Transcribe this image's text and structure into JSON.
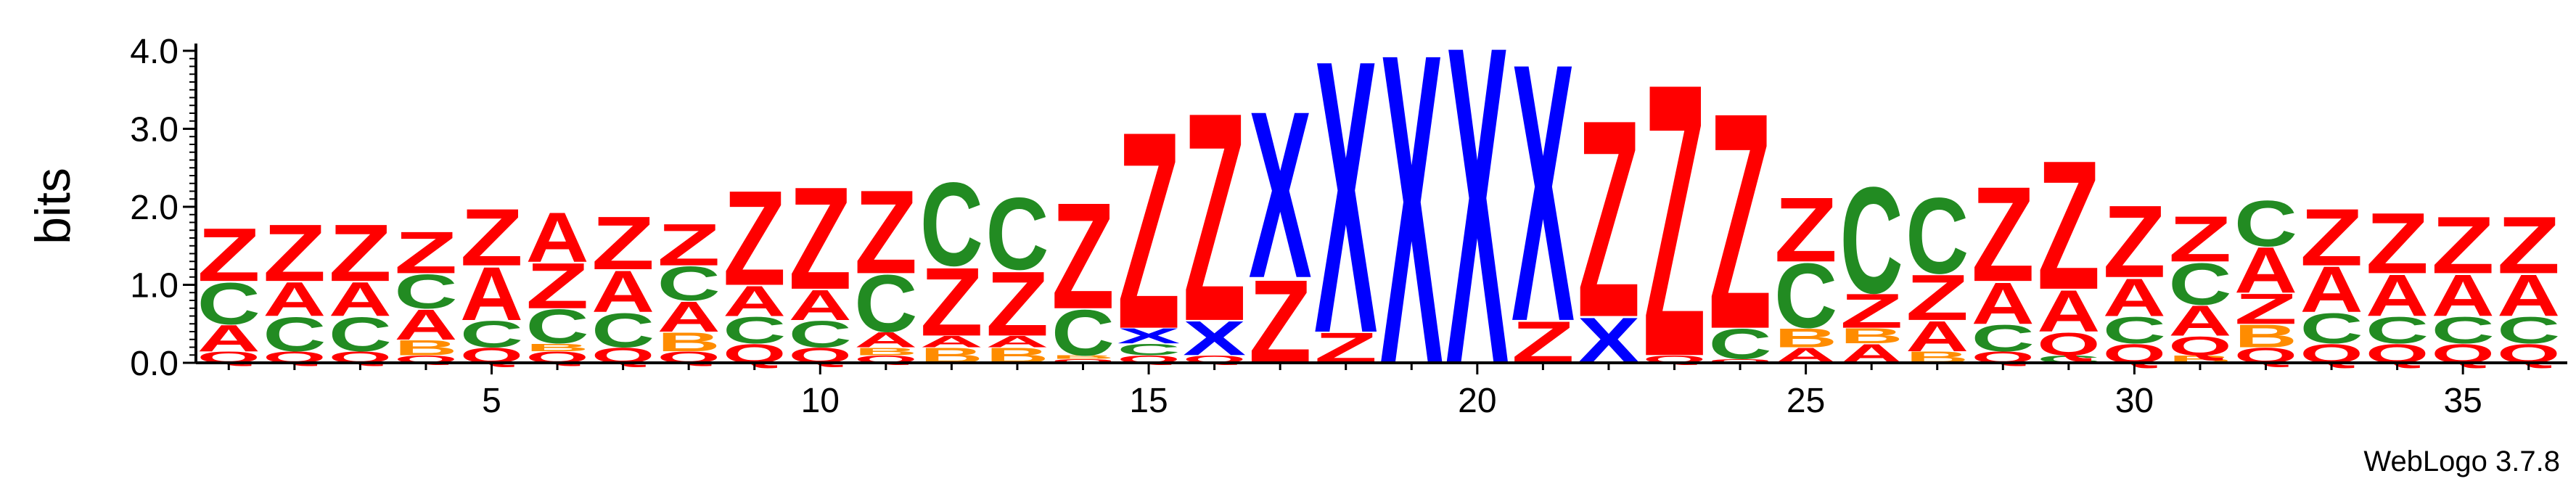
{
  "credit": "WebLogo 3.7.8",
  "chart_data": {
    "type": "sequence_logo",
    "ylabel": "bits",
    "ylim": [
      0,
      4.0
    ],
    "y_ticks": [
      "0.0",
      "1.0",
      "2.0",
      "3.0",
      "4.0"
    ],
    "x_ticks": [
      5,
      10,
      15,
      20,
      25,
      30,
      35
    ],
    "x_range": [
      1,
      36
    ],
    "colors": {
      "Z": "#ff0000",
      "X": "#0000ff",
      "C": "#228b22",
      "A": "#ff0000",
      "B": "#ff8c00",
      "Q": "#ff0000"
    },
    "positions": [
      {
        "pos": 1,
        "letters": [
          [
            "Q",
            0.15
          ],
          [
            "A",
            0.35
          ],
          [
            "C",
            0.55
          ],
          [
            "Z",
            0.7
          ]
        ]
      },
      {
        "pos": 2,
        "letters": [
          [
            "Q",
            0.15
          ],
          [
            "C",
            0.45
          ],
          [
            "A",
            0.45
          ],
          [
            "Z",
            0.75
          ]
        ]
      },
      {
        "pos": 3,
        "letters": [
          [
            "Q",
            0.15
          ],
          [
            "C",
            0.45
          ],
          [
            "A",
            0.45
          ],
          [
            "Z",
            0.75
          ]
        ]
      },
      {
        "pos": 4,
        "letters": [
          [
            "Q",
            0.1
          ],
          [
            "B",
            0.2
          ],
          [
            "A",
            0.4
          ],
          [
            "C",
            0.45
          ],
          [
            "Z",
            0.55
          ]
        ]
      },
      {
        "pos": 5,
        "letters": [
          [
            "Q",
            0.2
          ],
          [
            "C",
            0.35
          ],
          [
            "A",
            0.7
          ],
          [
            "Z",
            0.75
          ]
        ]
      },
      {
        "pos": 6,
        "letters": [
          [
            "Q",
            0.15
          ],
          [
            "B",
            0.1
          ],
          [
            "C",
            0.45
          ],
          [
            "Z",
            0.6
          ],
          [
            "A",
            0.65
          ]
        ]
      },
      {
        "pos": 7,
        "letters": [
          [
            "Q",
            0.2
          ],
          [
            "C",
            0.45
          ],
          [
            "A",
            0.55
          ],
          [
            "Z",
            0.7
          ]
        ]
      },
      {
        "pos": 8,
        "letters": [
          [
            "Q",
            0.15
          ],
          [
            "B",
            0.25
          ],
          [
            "A",
            0.4
          ],
          [
            "C",
            0.45
          ],
          [
            "Z",
            0.55
          ]
        ]
      },
      {
        "pos": 9,
        "letters": [
          [
            "Q",
            0.25
          ],
          [
            "C",
            0.35
          ],
          [
            "A",
            0.4
          ],
          [
            "Z",
            1.25
          ]
        ]
      },
      {
        "pos": 10,
        "letters": [
          [
            "Q",
            0.2
          ],
          [
            "C",
            0.35
          ],
          [
            "A",
            0.4
          ],
          [
            "Z",
            1.35
          ]
        ]
      },
      {
        "pos": 11,
        "letters": [
          [
            "Q",
            0.1
          ],
          [
            "B",
            0.1
          ],
          [
            "A",
            0.2
          ],
          [
            "C",
            0.75
          ],
          [
            "Z",
            1.1
          ]
        ]
      },
      {
        "pos": 12,
        "letters": [
          [
            "B",
            0.2
          ],
          [
            "A",
            0.15
          ],
          [
            "Z",
            0.9
          ],
          [
            "C",
            1.1
          ]
        ]
      },
      {
        "pos": 13,
        "letters": [
          [
            "B",
            0.2
          ],
          [
            "A",
            0.15
          ],
          [
            "Z",
            0.85
          ],
          [
            "C",
            0.95
          ]
        ]
      },
      {
        "pos": 14,
        "letters": [
          [
            "Q",
            0.05
          ],
          [
            "B",
            0.05
          ],
          [
            "C",
            0.6
          ],
          [
            "Z",
            1.4
          ]
        ]
      },
      {
        "pos": 15,
        "letters": [
          [
            "Q",
            0.1
          ],
          [
            "C",
            0.15
          ],
          [
            "X",
            0.2
          ],
          [
            "Z",
            2.6
          ]
        ]
      },
      {
        "pos": 16,
        "letters": [
          [
            "Q",
            0.1
          ],
          [
            "X",
            0.45
          ],
          [
            "Z",
            2.75
          ]
        ]
      },
      {
        "pos": 17,
        "letters": [
          [
            "Z",
            1.1
          ],
          [
            "X",
            2.2
          ]
        ]
      },
      {
        "pos": 18,
        "letters": [
          [
            "Z",
            0.4
          ],
          [
            "X",
            3.6
          ]
        ]
      },
      {
        "pos": 19,
        "letters": [
          [
            "X",
            4.1
          ]
        ]
      },
      {
        "pos": 20,
        "letters": [
          [
            "X",
            4.2
          ]
        ]
      },
      {
        "pos": 21,
        "letters": [
          [
            "Z",
            0.55
          ],
          [
            "X",
            3.4
          ]
        ]
      },
      {
        "pos": 22,
        "letters": [
          [
            "X",
            0.6
          ],
          [
            "Z",
            2.6
          ]
        ]
      },
      {
        "pos": 23,
        "letters": [
          [
            "Q",
            0.1
          ],
          [
            "Z",
            3.6
          ]
        ]
      },
      {
        "pos": 24,
        "letters": [
          [
            "Q",
            0.05
          ],
          [
            "C",
            0.4
          ],
          [
            "Z",
            2.85
          ]
        ]
      },
      {
        "pos": 25,
        "letters": [
          [
            "A",
            0.2
          ],
          [
            "B",
            0.25
          ],
          [
            "C",
            0.85
          ],
          [
            "Z",
            0.85
          ]
        ]
      },
      {
        "pos": 26,
        "letters": [
          [
            "A",
            0.25
          ],
          [
            "B",
            0.2
          ],
          [
            "Z",
            0.45
          ],
          [
            "C",
            1.4
          ]
        ]
      },
      {
        "pos": 27,
        "letters": [
          [
            "B",
            0.15
          ],
          [
            "A",
            0.4
          ],
          [
            "Z",
            0.6
          ],
          [
            "C",
            1.0
          ]
        ]
      },
      {
        "pos": 28,
        "letters": [
          [
            "Q",
            0.15
          ],
          [
            "C",
            0.35
          ],
          [
            "A",
            0.55
          ],
          [
            "Z",
            1.25
          ]
        ]
      },
      {
        "pos": 29,
        "letters": [
          [
            "C",
            0.1
          ],
          [
            "Q",
            0.3
          ],
          [
            "A",
            0.55
          ],
          [
            "Z",
            1.7
          ]
        ]
      },
      {
        "pos": 30,
        "letters": [
          [
            "Q",
            0.25
          ],
          [
            "C",
            0.35
          ],
          [
            "A",
            0.5
          ],
          [
            "Z",
            0.95
          ]
        ]
      },
      {
        "pos": 31,
        "letters": [
          [
            "B",
            0.1
          ],
          [
            "Q",
            0.25
          ],
          [
            "A",
            0.4
          ],
          [
            "C",
            0.55
          ],
          [
            "Z",
            0.6
          ]
        ]
      },
      {
        "pos": 32,
        "letters": [
          [
            "Q",
            0.2
          ],
          [
            "B",
            0.3
          ],
          [
            "Z",
            0.4
          ],
          [
            "A",
            0.6
          ],
          [
            "C",
            0.6
          ]
        ]
      },
      {
        "pos": 33,
        "letters": [
          [
            "Q",
            0.25
          ],
          [
            "C",
            0.4
          ],
          [
            "A",
            0.6
          ],
          [
            "Z",
            0.75
          ]
        ]
      },
      {
        "pos": 34,
        "letters": [
          [
            "Q",
            0.25
          ],
          [
            "C",
            0.35
          ],
          [
            "A",
            0.55
          ],
          [
            "Z",
            0.8
          ]
        ]
      },
      {
        "pos": 35,
        "letters": [
          [
            "Q",
            0.25
          ],
          [
            "C",
            0.35
          ],
          [
            "A",
            0.55
          ],
          [
            "Z",
            0.75
          ]
        ]
      },
      {
        "pos": 36,
        "letters": [
          [
            "Q",
            0.25
          ],
          [
            "C",
            0.35
          ],
          [
            "A",
            0.55
          ],
          [
            "Z",
            0.75
          ]
        ]
      }
    ]
  }
}
